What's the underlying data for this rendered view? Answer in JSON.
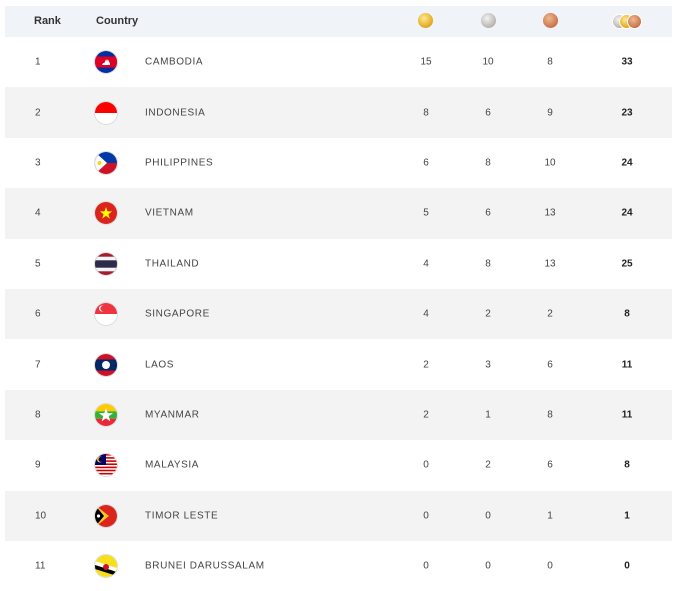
{
  "header": {
    "rank_label": "Rank",
    "country_label": "Country",
    "gold_icon": "gold-medal-icon",
    "silver_icon": "silver-medal-icon",
    "bronze_icon": "bronze-medal-icon",
    "total_icon": "total-medals-icon"
  },
  "rows": [
    {
      "rank": "1",
      "country": "CAMBODIA",
      "gold": "15",
      "silver": "10",
      "bronze": "8",
      "total": "33"
    },
    {
      "rank": "2",
      "country": "INDONESIA",
      "gold": "8",
      "silver": "6",
      "bronze": "9",
      "total": "23"
    },
    {
      "rank": "3",
      "country": "PHILIPPINES",
      "gold": "6",
      "silver": "8",
      "bronze": "10",
      "total": "24"
    },
    {
      "rank": "4",
      "country": "VIETNAM",
      "gold": "5",
      "silver": "6",
      "bronze": "13",
      "total": "24"
    },
    {
      "rank": "5",
      "country": "THAILAND",
      "gold": "4",
      "silver": "8",
      "bronze": "13",
      "total": "25"
    },
    {
      "rank": "6",
      "country": "SINGAPORE",
      "gold": "4",
      "silver": "2",
      "bronze": "2",
      "total": "8"
    },
    {
      "rank": "7",
      "country": "LAOS",
      "gold": "2",
      "silver": "3",
      "bronze": "6",
      "total": "11"
    },
    {
      "rank": "8",
      "country": "MYANMAR",
      "gold": "2",
      "silver": "1",
      "bronze": "8",
      "total": "11"
    },
    {
      "rank": "9",
      "country": "MALAYSIA",
      "gold": "0",
      "silver": "2",
      "bronze": "6",
      "total": "8"
    },
    {
      "rank": "10",
      "country": "TIMOR LESTE",
      "gold": "0",
      "silver": "0",
      "bronze": "1",
      "total": "1"
    },
    {
      "rank": "11",
      "country": "BRUNEI DARUSSALAM",
      "gold": "0",
      "silver": "0",
      "bronze": "0",
      "total": "0"
    }
  ]
}
